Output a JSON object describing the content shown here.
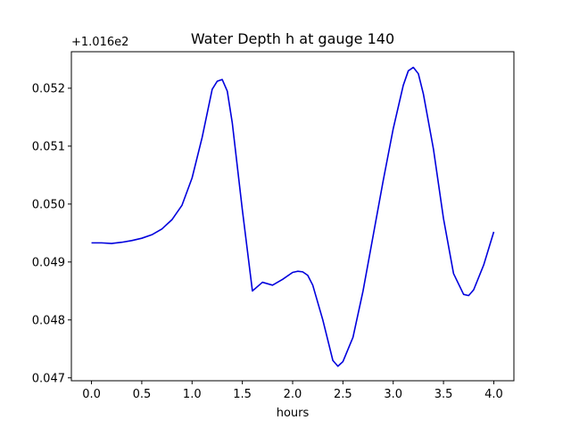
{
  "chart_data": {
    "type": "line",
    "title": "Water Depth h at gauge 140",
    "xlabel": "hours",
    "ylabel": "",
    "y_offset_label": "+1.016e2",
    "xlim": [
      -0.2,
      4.2
    ],
    "ylim": [
      0.04695,
      0.05263
    ],
    "x_ticks": [
      0.0,
      0.5,
      1.0,
      1.5,
      2.0,
      2.5,
      3.0,
      3.5,
      4.0
    ],
    "x_tick_labels": [
      "0.0",
      "0.5",
      "1.0",
      "1.5",
      "2.0",
      "2.5",
      "3.0",
      "3.5",
      "4.0"
    ],
    "y_ticks": [
      0.047,
      0.048,
      0.049,
      0.05,
      0.051,
      0.052
    ],
    "y_tick_labels": [
      "0.047",
      "0.048",
      "0.049",
      "0.050",
      "0.051",
      "0.052"
    ],
    "grid": false,
    "series": [
      {
        "color": "#0000dd",
        "x": [
          0.0,
          0.1,
          0.2,
          0.3,
          0.4,
          0.5,
          0.6,
          0.7,
          0.8,
          0.9,
          1.0,
          1.1,
          1.2,
          1.25,
          1.3,
          1.35,
          1.4,
          1.5,
          1.6,
          1.7,
          1.8,
          1.9,
          2.0,
          2.05,
          2.1,
          2.15,
          2.2,
          2.3,
          2.4,
          2.45,
          2.5,
          2.6,
          2.7,
          2.8,
          2.9,
          3.0,
          3.1,
          3.15,
          3.2,
          3.25,
          3.3,
          3.4,
          3.5,
          3.6,
          3.7,
          3.75,
          3.8,
          3.9,
          4.0
        ],
        "y": [
          0.04933,
          0.04933,
          0.04932,
          0.04934,
          0.04937,
          0.04941,
          0.04947,
          0.04957,
          0.04973,
          0.04998,
          0.05045,
          0.05115,
          0.05198,
          0.05212,
          0.05215,
          0.05195,
          0.0514,
          0.0499,
          0.0485,
          0.04865,
          0.0486,
          0.0487,
          0.04882,
          0.04884,
          0.04883,
          0.04877,
          0.0486,
          0.048,
          0.0473,
          0.0472,
          0.04728,
          0.0477,
          0.0485,
          0.04945,
          0.0504,
          0.0513,
          0.05205,
          0.0523,
          0.05236,
          0.05225,
          0.0519,
          0.05095,
          0.04975,
          0.0488,
          0.04844,
          0.04842,
          0.04852,
          0.04895,
          0.04952
        ]
      }
    ]
  }
}
